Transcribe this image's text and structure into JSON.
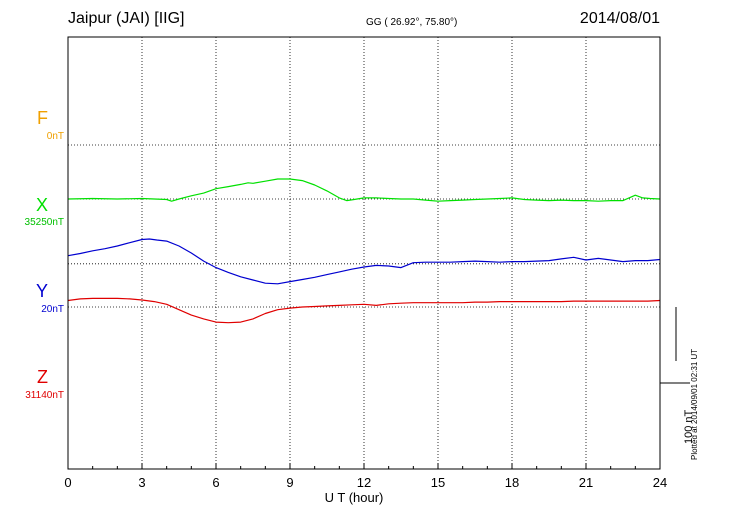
{
  "header": {
    "station": "Jaipur (JAI)  [IIG]",
    "coords": "GG ( 26.92°,  75.80°)",
    "date": "2014/08/01"
  },
  "components": [
    {
      "letter": "F",
      "base": "0nT",
      "color": "#f0a000"
    },
    {
      "letter": "X",
      "base": "35250nT",
      "color": "#00e000"
    },
    {
      "letter": "Y",
      "base": "20nT",
      "color": "#0000d0"
    },
    {
      "letter": "Z",
      "base": "31140nT",
      "color": "#e00000"
    }
  ],
  "scale_label": "100 nT",
  "plotted_note": "Plotted at 2014/09/01 02:31  UT",
  "chart_data": {
    "type": "line",
    "xlabel": "U T (hour)",
    "xlim": [
      0,
      24
    ],
    "xticks": [
      "0",
      "3",
      "6",
      "9",
      "12",
      "15",
      "18",
      "21",
      "24"
    ],
    "y_unit": "nT",
    "ylim": [
      -300,
      500
    ],
    "scale_bar_nT": 100,
    "series": [
      {
        "name": "X",
        "color": "#00e000",
        "baseline_offset_nT": 200,
        "x": [
          0,
          1,
          2,
          3,
          3.5,
          4,
          4.2,
          4.5,
          5,
          5.5,
          6,
          6.5,
          7,
          7.3,
          7.5,
          8,
          8.5,
          9,
          9.5,
          10,
          10.5,
          11,
          11.3,
          11.6,
          12,
          12.5,
          13,
          13.5,
          14,
          14.5,
          15,
          15.5,
          16,
          16.5,
          17,
          17.5,
          18,
          18.5,
          19,
          19.5,
          20,
          20.5,
          21,
          21.5,
          22,
          22.5,
          23,
          23.3,
          23.6,
          24
        ],
        "values": [
          0,
          1,
          0,
          1,
          0,
          -1,
          -4,
          0,
          6,
          11,
          19,
          23,
          27,
          30,
          29,
          33,
          37,
          37,
          34,
          26,
          15,
          2,
          -3,
          -1,
          2,
          2,
          1,
          0,
          0,
          -2,
          -4,
          -3,
          -2,
          -1,
          0,
          1,
          2,
          -1,
          -2,
          -3,
          -2,
          -3,
          -3,
          -4,
          -3,
          -3,
          7,
          2,
          1,
          0
        ]
      },
      {
        "name": "Y",
        "color": "#0000d0",
        "baseline_offset_nT": 80,
        "x": [
          0,
          0.5,
          1,
          1.5,
          2,
          2.5,
          3,
          3.3,
          3.6,
          4,
          4.5,
          5,
          5.5,
          6,
          6.5,
          7,
          7.5,
          8,
          8.5,
          9,
          9.5,
          10,
          10.5,
          11,
          11.5,
          12,
          12.5,
          13,
          13.5,
          14,
          14.5,
          15,
          15.5,
          16,
          16.5,
          17,
          17.5,
          18,
          18.5,
          19,
          19.5,
          20,
          20.5,
          21,
          21.5,
          22,
          22.5,
          23,
          23.5,
          24
        ],
        "values": [
          15,
          19,
          24,
          28,
          33,
          39,
          45,
          46,
          44,
          42,
          33,
          20,
          5,
          -7,
          -16,
          -24,
          -30,
          -36,
          -37,
          -33,
          -29,
          -25,
          -20,
          -15,
          -10,
          -6,
          -3,
          -4,
          -7,
          2,
          3,
          3,
          3,
          4,
          5,
          4,
          3,
          4,
          4,
          5,
          6,
          9,
          12,
          7,
          10,
          7,
          4,
          6,
          6,
          8
        ]
      },
      {
        "name": "Z",
        "color": "#e00000",
        "baseline_offset_nT": 0,
        "x": [
          0,
          0.5,
          1,
          1.5,
          2,
          2.5,
          3,
          3.5,
          4,
          4.5,
          5,
          5.5,
          6,
          6.5,
          7,
          7.5,
          8,
          8.5,
          9,
          9.5,
          10,
          10.5,
          11,
          11.5,
          12,
          12.5,
          13,
          13.5,
          14,
          14.5,
          15,
          15.5,
          16,
          16.5,
          17,
          17.5,
          18,
          18.5,
          19,
          19.5,
          20,
          20.5,
          21,
          21.5,
          22,
          22.5,
          23,
          23.5,
          24
        ],
        "values": [
          12,
          15,
          16,
          16,
          16,
          15,
          13,
          10,
          5,
          -5,
          -15,
          -22,
          -28,
          -29,
          -28,
          -22,
          -12,
          -5,
          -2,
          0,
          1,
          2,
          3,
          4,
          5,
          3,
          6,
          7,
          8,
          8,
          8,
          8,
          8,
          9,
          9,
          10,
          10,
          10,
          10,
          10,
          10,
          11,
          11,
          11,
          11,
          11,
          11,
          11,
          12
        ]
      }
    ]
  }
}
